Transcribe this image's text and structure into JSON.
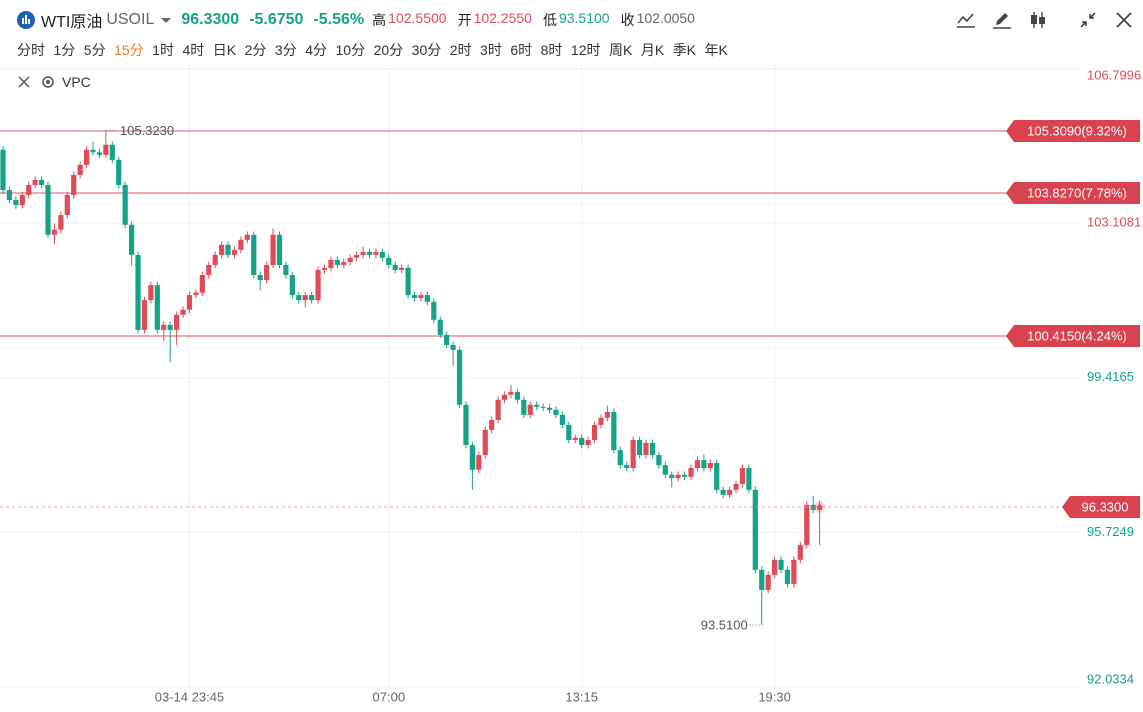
{
  "header": {
    "symbol": "WTI原油",
    "code": "USOIL",
    "price": "96.3300",
    "change": "-5.6750",
    "change_pct": "-5.56%",
    "stats": [
      {
        "label": "高",
        "value": "102.5500"
      },
      {
        "label": "开",
        "value": "102.2550"
      },
      {
        "label": "低",
        "value": "93.5100"
      },
      {
        "label": "收",
        "value": "102.0050"
      }
    ]
  },
  "tabs": {
    "items": [
      "分时",
      "1分",
      "5分",
      "15分",
      "1时",
      "4时",
      "日K",
      "2分",
      "3分",
      "4分",
      "10分",
      "20分",
      "30分",
      "2时",
      "3时",
      "6时",
      "8时",
      "12时",
      "周K",
      "月K",
      "季K",
      "年K"
    ],
    "active": 3
  },
  "indicator": {
    "name": "VPC"
  },
  "chart_data": {
    "type": "candlestick",
    "up_color": "#e04b58",
    "down_color": "#14a388",
    "grid": true,
    "ylim": [
      91.96,
      106.885
    ],
    "yticks": [
      92.0334,
      95.7249,
      99.4165,
      103.1081,
      106.7996
    ],
    "categories": [
      null,
      null,
      null,
      null,
      null,
      null,
      null,
      null,
      null,
      null,
      null,
      null,
      null,
      null,
      null,
      null,
      null,
      null,
      null,
      null,
      null,
      null,
      null,
      null,
      null,
      null,
      null,
      null,
      null,
      "03-14 23:45",
      null,
      null,
      null,
      null,
      null,
      null,
      null,
      null,
      null,
      null,
      null,
      null,
      null,
      null,
      null,
      null,
      null,
      null,
      null,
      null,
      null,
      null,
      null,
      null,
      null,
      null,
      null,
      null,
      null,
      null,
      "07:00",
      null,
      null,
      null,
      null,
      null,
      null,
      null,
      null,
      null,
      null,
      null,
      null,
      null,
      null,
      null,
      null,
      null,
      null,
      null,
      null,
      null,
      null,
      null,
      null,
      null,
      null,
      null,
      null,
      null,
      "13:15",
      null,
      null,
      null,
      null,
      null,
      null,
      null,
      null,
      null,
      null,
      null,
      null,
      null,
      null,
      null,
      null,
      null,
      null,
      null,
      null,
      null,
      null,
      null,
      null,
      null,
      null,
      null,
      null,
      null,
      "19:30",
      null,
      null,
      null,
      null,
      null,
      null,
      null
    ],
    "open": [
      104.86,
      103.9,
      103.66,
      103.54,
      103.78,
      104.02,
      104.14,
      104.02,
      102.83,
      102.95,
      103.3,
      103.78,
      104.26,
      104.5,
      104.86,
      104.8,
      104.74,
      104.98,
      104.62,
      104.02,
      103.07,
      102.35,
      100.56,
      101.27,
      101.63,
      100.56,
      100.68,
      100.56,
      100.92,
      101.04,
      101.39,
      101.45,
      101.87,
      102.11,
      102.35,
      102.59,
      102.35,
      102.47,
      102.71,
      102.83,
      101.87,
      101.75,
      102.11,
      102.83,
      102.11,
      101.87,
      101.39,
      101.27,
      101.39,
      101.27,
      101.99,
      102.04,
      102.23,
      102.11,
      102.18,
      102.28,
      102.35,
      102.42,
      102.35,
      102.42,
      102.28,
      102.11,
      101.99,
      102.04,
      101.39,
      101.32,
      101.39,
      101.23,
      100.8,
      100.44,
      100.2,
      100.08,
      98.77,
      97.81,
      97.22,
      97.57,
      98.17,
      98.41,
      98.89,
      99.01,
      99.08,
      98.89,
      98.53,
      98.77,
      98.72,
      98.7,
      98.65,
      98.53,
      98.29,
      97.93,
      97.98,
      97.81,
      97.93,
      98.29,
      98.46,
      98.6,
      97.69,
      97.33,
      97.26,
      97.93,
      97.57,
      97.86,
      97.57,
      97.33,
      97.1,
      97.02,
      97.1,
      97.05,
      97.26,
      97.45,
      97.26,
      97.38,
      96.74,
      96.62,
      96.74,
      96.88,
      97.26,
      96.74,
      94.83,
      94.35,
      94.71,
      95.07,
      94.83,
      94.49,
      95.07,
      95.42,
      96.38,
      96.26
    ],
    "high": [
      104.95,
      103.98,
      103.75,
      103.86,
      104.1,
      104.22,
      104.22,
      104.1,
      103.1,
      103.38,
      103.86,
      104.34,
      104.58,
      104.94,
      105.05,
      104.88,
      105.323,
      105.06,
      104.7,
      104.1,
      103.15,
      102.43,
      101.35,
      101.71,
      101.71,
      100.76,
      100.76,
      101.0,
      101.12,
      101.47,
      101.53,
      101.95,
      102.19,
      102.43,
      102.67,
      102.67,
      102.55,
      102.79,
      102.91,
      102.91,
      101.95,
      102.19,
      102.98,
      102.91,
      102.19,
      101.95,
      101.47,
      101.47,
      101.47,
      102.07,
      102.12,
      102.31,
      102.31,
      102.26,
      102.36,
      102.43,
      102.55,
      102.5,
      102.5,
      102.5,
      102.36,
      102.19,
      102.12,
      102.12,
      101.47,
      101.47,
      101.47,
      101.31,
      100.88,
      100.52,
      100.28,
      100.16,
      98.85,
      97.89,
      97.65,
      98.25,
      98.49,
      98.97,
      99.09,
      99.25,
      99.16,
      98.97,
      98.85,
      98.85,
      98.8,
      98.78,
      98.73,
      98.61,
      98.37,
      98.06,
      98.06,
      98.01,
      98.37,
      98.54,
      98.75,
      98.68,
      97.77,
      97.41,
      98.01,
      98.01,
      97.94,
      97.94,
      97.65,
      97.41,
      97.18,
      97.18,
      97.18,
      97.34,
      97.53,
      97.58,
      97.46,
      97.46,
      96.82,
      96.82,
      96.96,
      97.34,
      97.34,
      96.82,
      94.91,
      94.79,
      95.15,
      95.15,
      94.91,
      95.15,
      95.5,
      96.46,
      96.6,
      96.48
    ],
    "low": [
      103.8,
      103.58,
      103.45,
      103.46,
      103.7,
      103.94,
      103.94,
      102.75,
      102.6,
      102.87,
      103.22,
      103.7,
      104.18,
      104.42,
      104.72,
      104.66,
      104.66,
      104.54,
      103.94,
      102.99,
      102.1,
      100.48,
      100.48,
      101.19,
      100.48,
      100.3,
      99.79,
      100.2,
      100.84,
      100.96,
      101.31,
      101.37,
      101.79,
      102.03,
      102.27,
      102.27,
      102.27,
      102.39,
      102.63,
      101.79,
      101.5,
      101.67,
      102.03,
      102.03,
      101.79,
      101.31,
      101.19,
      101.1,
      101.19,
      101.19,
      101.91,
      101.96,
      102.03,
      102.03,
      102.1,
      102.2,
      102.27,
      102.27,
      102.27,
      102.2,
      102.03,
      101.91,
      101.91,
      101.31,
      101.24,
      101.24,
      101.15,
      100.72,
      100.36,
      100.12,
      99.7,
      98.69,
      97.73,
      96.74,
      97.14,
      97.49,
      98.09,
      98.33,
      98.81,
      98.93,
      98.81,
      98.45,
      98.45,
      98.64,
      98.62,
      98.57,
      98.45,
      98.21,
      97.85,
      97.85,
      97.73,
      97.73,
      97.85,
      98.21,
      98.38,
      97.61,
      97.25,
      97.18,
      97.18,
      97.49,
      97.49,
      97.49,
      97.25,
      97.02,
      96.8,
      96.94,
      96.97,
      96.97,
      97.18,
      97.18,
      97.18,
      96.66,
      96.54,
      96.54,
      96.66,
      96.8,
      96.66,
      94.75,
      93.51,
      94.27,
      94.63,
      94.75,
      94.41,
      94.41,
      94.99,
      95.34,
      96.18,
      95.42
    ],
    "close": [
      103.9,
      103.66,
      103.54,
      103.78,
      104.02,
      104.14,
      104.02,
      102.83,
      102.95,
      103.3,
      103.78,
      104.26,
      104.5,
      104.86,
      104.8,
      104.74,
      104.98,
      104.62,
      104.02,
      103.07,
      102.35,
      100.56,
      101.27,
      101.63,
      100.56,
      100.68,
      100.56,
      100.92,
      101.04,
      101.39,
      101.45,
      101.87,
      102.11,
      102.35,
      102.59,
      102.35,
      102.47,
      102.71,
      102.83,
      101.87,
      101.75,
      102.11,
      102.83,
      102.11,
      101.87,
      101.39,
      101.27,
      101.39,
      101.27,
      101.99,
      102.04,
      102.23,
      102.11,
      102.18,
      102.28,
      102.35,
      102.42,
      102.35,
      102.42,
      102.28,
      102.11,
      101.99,
      102.04,
      101.39,
      101.32,
      101.39,
      101.23,
      100.8,
      100.44,
      100.2,
      100.08,
      98.77,
      97.81,
      97.22,
      97.57,
      98.17,
      98.41,
      98.89,
      99.01,
      99.08,
      98.89,
      98.53,
      98.77,
      98.72,
      98.7,
      98.65,
      98.53,
      98.29,
      97.93,
      97.98,
      97.81,
      97.93,
      98.29,
      98.46,
      98.6,
      97.69,
      97.33,
      97.26,
      97.93,
      97.57,
      97.86,
      97.57,
      97.33,
      97.1,
      97.02,
      97.1,
      97.05,
      97.26,
      97.45,
      97.26,
      97.38,
      96.74,
      96.62,
      96.74,
      96.88,
      97.26,
      96.74,
      94.83,
      94.35,
      94.71,
      95.07,
      94.83,
      94.49,
      95.07,
      95.42,
      96.38,
      96.26,
      96.33
    ],
    "max_marker": {
      "value": 105.323,
      "label": "105.3230"
    },
    "min_marker": {
      "value": 93.51,
      "label": "93.5100"
    },
    "levels": [
      {
        "value": 105.309,
        "label": "105.3090(9.32%)"
      },
      {
        "value": 103.827,
        "label": "103.8270(7.78%)"
      },
      {
        "value": 100.415,
        "label": "100.4150(4.24%)"
      }
    ],
    "last": {
      "value": 96.33,
      "label": "96.3300"
    }
  }
}
